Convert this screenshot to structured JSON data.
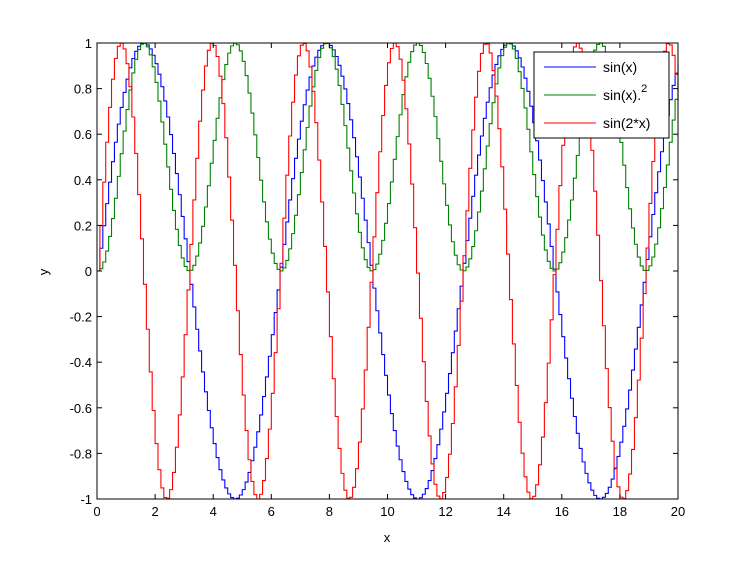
{
  "chart_data": {
    "type": "line",
    "title": "",
    "xlabel": "x",
    "ylabel": "y",
    "xlim": [
      0,
      20
    ],
    "ylim": [
      -1,
      1
    ],
    "xticks": [
      0,
      2,
      4,
      6,
      8,
      10,
      12,
      14,
      16,
      18,
      20
    ],
    "xtick_labels": [
      "0",
      "2",
      "4",
      "6",
      "8",
      "10",
      "12",
      "14",
      "16",
      "18",
      "20"
    ],
    "yticks": [
      -1,
      -0.8,
      -0.6,
      -0.4,
      -0.2,
      0,
      0.2,
      0.4,
      0.6,
      0.8,
      1
    ],
    "ytick_labels": [
      "-1",
      "-0.8",
      "-0.6",
      "-0.4",
      "-0.2",
      "0",
      "0.2",
      "0.4",
      "0.6",
      "0.8",
      "1"
    ],
    "grid": false,
    "legend_position": "top-right",
    "x_step": 0.1,
    "series": [
      {
        "name": "sin(x)",
        "legend_base": "sin(x)",
        "legend_sup": "",
        "color": "#0000ff",
        "func": "sin"
      },
      {
        "name": "sin(x).^2",
        "legend_base": "sin(x).",
        "legend_sup": "2",
        "color": "#008000",
        "func": "sin_squared"
      },
      {
        "name": "sin(2*x)",
        "legend_base": "sin(2*x)",
        "legend_sup": "",
        "color": "#ff0000",
        "func": "sin_2x"
      }
    ]
  }
}
